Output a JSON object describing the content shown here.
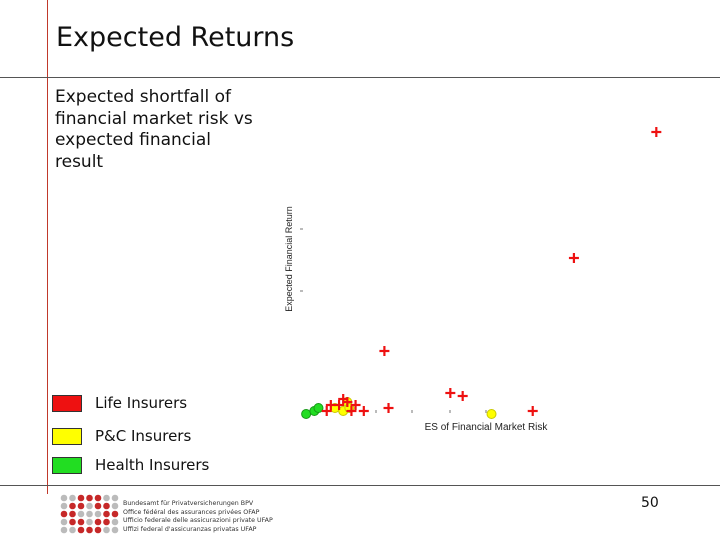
{
  "slide": {
    "title": "Expected Returns",
    "subtitle": "Expected shortfall of financial market risk vs expected financial result",
    "page_number": "50"
  },
  "legend": [
    {
      "label": "Life Insurers",
      "color": "#ee1111"
    },
    {
      "label": "P&C Insurers",
      "color": "#ffff00"
    },
    {
      "label": "Health Insurers",
      "color": "#22dd22"
    }
  ],
  "logo": {
    "lines": [
      "Bundesamt für Privatversicherungen BPV",
      "Office fédéral des assurances privées OFAP",
      "Ufficio federale delle assicurazioni private UFAP",
      "Uffizi federal d'assicuranzas privatas UFAP"
    ]
  },
  "chart_data": {
    "type": "scatter",
    "xlabel": "ES of Financial Market Risk",
    "ylabel": "Expected Financial Return",
    "series": [
      {
        "name": "Life Insurers",
        "color": "#ee1111",
        "marker": "plus",
        "points": [
          [
            12,
            1
          ],
          [
            14,
            3
          ],
          [
            18,
            3
          ],
          [
            20,
            5
          ],
          [
            22,
            4
          ],
          [
            24,
            1
          ],
          [
            26,
            3
          ],
          [
            30,
            1
          ],
          [
            40,
            21
          ],
          [
            42,
            2
          ],
          [
            72,
            7
          ],
          [
            78,
            6
          ],
          [
            112,
            1
          ],
          [
            132,
            52
          ],
          [
            172,
            94
          ]
        ]
      },
      {
        "name": "P&C Insurers",
        "color": "#ffff00",
        "marker": "circle",
        "points": [
          [
            16,
            2
          ],
          [
            20,
            1
          ],
          [
            22,
            4
          ],
          [
            23,
            2
          ],
          [
            92,
            0
          ]
        ]
      },
      {
        "name": "Health Insurers",
        "color": "#22dd22",
        "marker": "circle",
        "points": [
          [
            2,
            0
          ],
          [
            6,
            1
          ],
          [
            8,
            2
          ]
        ]
      }
    ]
  }
}
